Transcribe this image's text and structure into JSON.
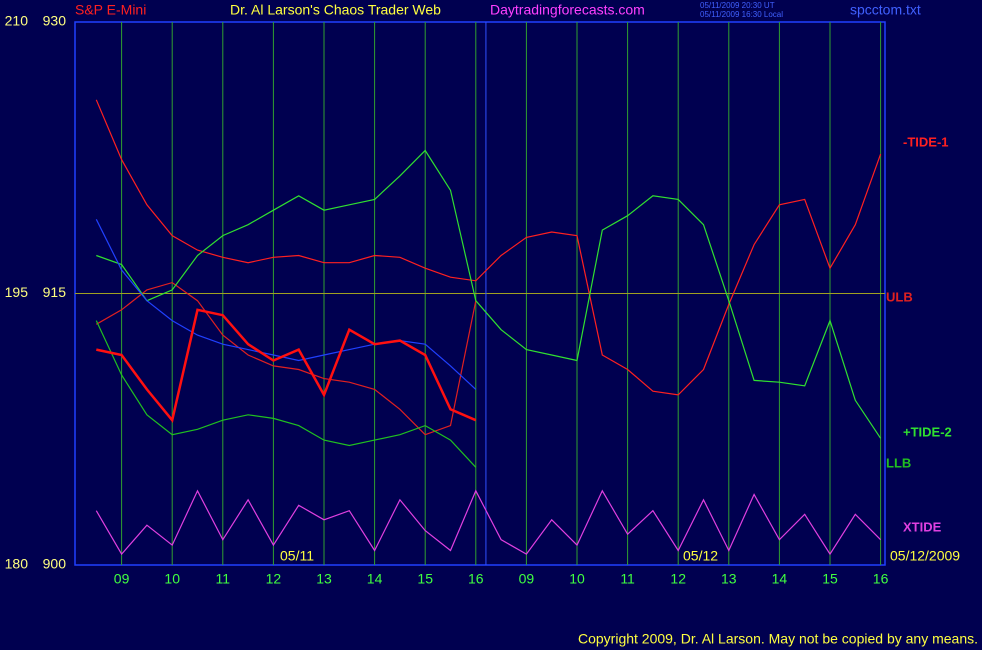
{
  "chart_data": {
    "type": "line",
    "title": "Dr. Al Larson's Chaos Trader Web",
    "subtitle": "S&P E-Mini",
    "site": "Daytradingforecasts.com",
    "timestamps": [
      "05/11/2009 20:30 UT",
      "05/11/2009 16:30 Local"
    ],
    "file": "spcctom.txt",
    "copyright": "Copyright 2009, Dr. Al Larson. May not be copied by any means.",
    "date_labels": [
      "05/11",
      "05/12",
      "05/12/2009"
    ],
    "xlim": [
      0,
      16.1
    ],
    "x": [
      0.5,
      1,
      1.5,
      2,
      2.5,
      3,
      3.5,
      4,
      4.5,
      5,
      5.5,
      6,
      6.5,
      7,
      7.5,
      8,
      8.5,
      9,
      9.5,
      10,
      10.5,
      11,
      11.5,
      12,
      12.5,
      13,
      13.5,
      14,
      14.5,
      15,
      15.5,
      16
    ],
    "xticks": [
      {
        "value": 1,
        "label": "09"
      },
      {
        "value": 2,
        "label": "10"
      },
      {
        "value": 3,
        "label": "11"
      },
      {
        "value": 4,
        "label": "12"
      },
      {
        "value": 5,
        "label": "13"
      },
      {
        "value": 6,
        "label": "14"
      },
      {
        "value": 7,
        "label": "15"
      },
      {
        "value": 8,
        "label": "16"
      },
      {
        "value": 9,
        "label": "09"
      },
      {
        "value": 10,
        "label": "10"
      },
      {
        "value": 11,
        "label": "11"
      },
      {
        "value": 12,
        "label": "12"
      },
      {
        "value": 13,
        "label": "13"
      },
      {
        "value": 14,
        "label": "14"
      },
      {
        "value": 15,
        "label": "15"
      },
      {
        "value": 16,
        "label": "16"
      }
    ],
    "ylim": [
      900,
      930
    ],
    "yticks": [
      900,
      915,
      930
    ],
    "y2lim": [
      180,
      210
    ],
    "y2ticks": [
      180,
      195,
      210
    ],
    "reference_line": 915,
    "now_x": 8.2,
    "series": [
      {
        "name": "-TIDE-1",
        "color": "#ff2020",
        "values": [
          925.7,
          922.4,
          919.9,
          918.2,
          917.4,
          917.0,
          916.7,
          917.0,
          917.1,
          916.7,
          916.7,
          917.1,
          917.0,
          916.4,
          915.9,
          915.7,
          917.1,
          918.1,
          918.4,
          918.2,
          911.6,
          910.8,
          909.6,
          909.4,
          910.8,
          914.4,
          917.7,
          919.9,
          920.2,
          916.4,
          918.8,
          922.7
        ]
      },
      {
        "name": "ULB",
        "color": "#e02020",
        "values": [
          913.3,
          914.1,
          915.2,
          915.6,
          914.6,
          912.7,
          911.6,
          911.0,
          910.8,
          910.3,
          910.1,
          909.7,
          908.6,
          907.2,
          907.7,
          914.6,
          null,
          null,
          null,
          null,
          null,
          null,
          null,
          null,
          null,
          null,
          null,
          null,
          null,
          null,
          null,
          null
        ]
      },
      {
        "name": "+TIDE-2",
        "color": "#30e030",
        "values": [
          917.1,
          916.6,
          914.6,
          915.2,
          917.1,
          918.2,
          918.8,
          919.6,
          920.4,
          919.6,
          919.9,
          920.2,
          921.5,
          922.9,
          920.7,
          914.6,
          913.0,
          911.9,
          911.6,
          911.3,
          918.5,
          919.3,
          920.4,
          920.2,
          918.8,
          914.6,
          910.2,
          910.1,
          909.9,
          913.5,
          909.1,
          907.0
        ]
      },
      {
        "name": "LLB",
        "color": "#20c020",
        "values": [
          913.5,
          910.5,
          908.3,
          907.2,
          907.5,
          908.0,
          908.3,
          908.1,
          907.7,
          906.9,
          906.6,
          906.9,
          907.2,
          907.7,
          906.9,
          905.4,
          null,
          null,
          null,
          null,
          null,
          null,
          null,
          null,
          null,
          null,
          null,
          null,
          null,
          null,
          null,
          null
        ]
      },
      {
        "color": "#2040ff",
        "values": [
          919.1,
          916.3,
          914.6,
          913.5,
          912.7,
          912.2,
          911.9,
          911.6,
          911.3,
          911.6,
          911.9,
          912.2,
          912.4,
          912.2,
          911.0,
          909.7,
          null,
          null,
          null,
          null,
          null,
          null,
          null,
          null,
          null,
          null,
          null,
          null,
          null,
          null,
          null,
          null
        ]
      },
      {
        "color": "#ff1010",
        "values": [
          911.9,
          911.6,
          909.7,
          908.0,
          914.1,
          913.8,
          912.2,
          911.3,
          911.9,
          909.4,
          913.0,
          912.2,
          912.4,
          911.6,
          908.6,
          908.0,
          null,
          null,
          null,
          null,
          null,
          null,
          null,
          null,
          null,
          null,
          null,
          null,
          null,
          null,
          null,
          null
        ]
      },
      {
        "name": "XTIDE",
        "color": "#e040e0",
        "values": [
          903.0,
          900.6,
          902.2,
          901.1,
          904.1,
          901.4,
          903.6,
          901.1,
          903.3,
          902.5,
          903.0,
          900.8,
          903.6,
          901.9,
          900.8,
          904.1,
          901.4,
          900.6,
          902.5,
          901.1,
          904.1,
          901.7,
          903.0,
          900.8,
          903.6,
          900.8,
          903.9,
          901.4,
          902.8,
          900.6,
          902.8,
          901.4
        ]
      }
    ]
  }
}
